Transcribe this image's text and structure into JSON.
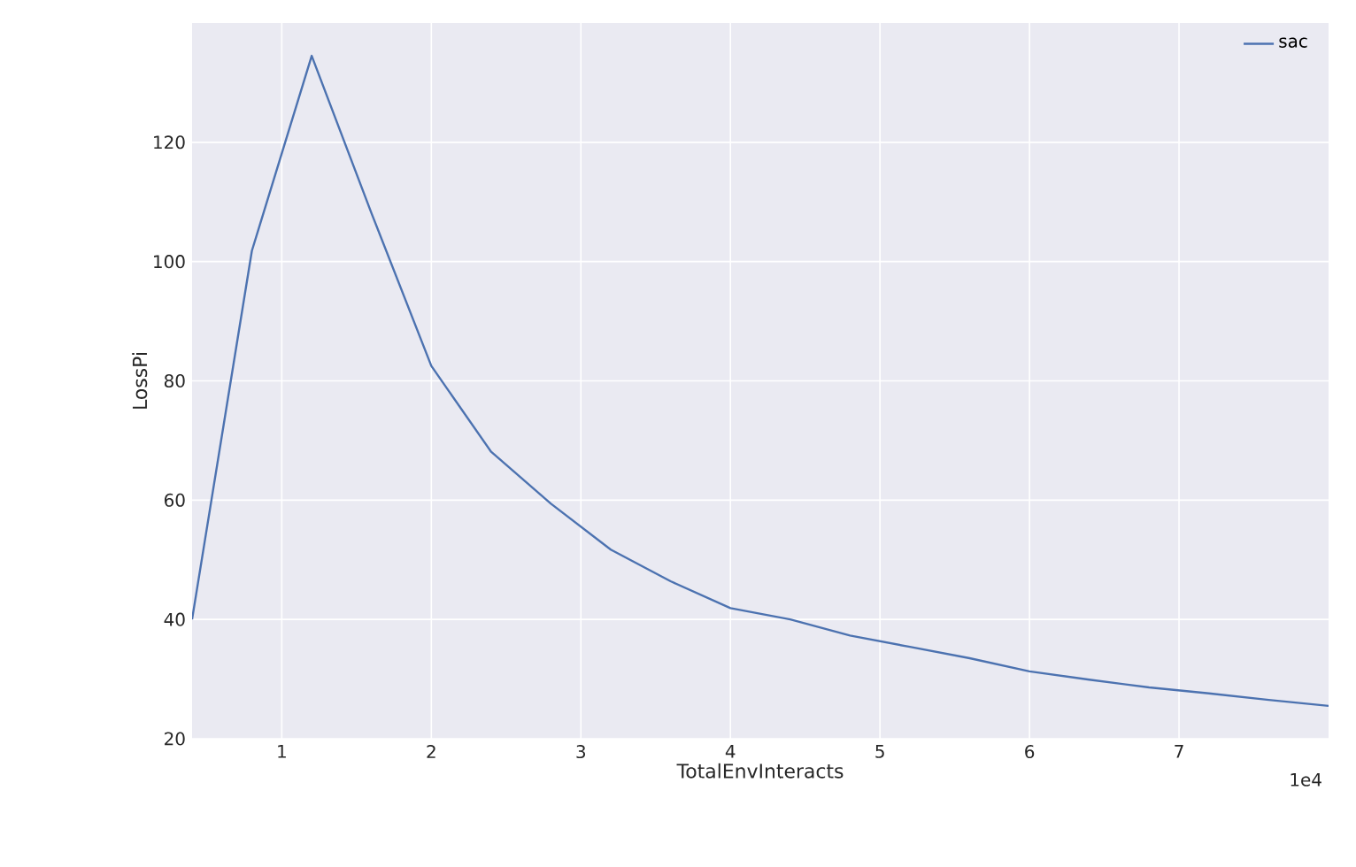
{
  "chart_data": {
    "type": "line",
    "xlabel": "TotalEnvInteracts",
    "ylabel": "LossPi",
    "x": [
      0.4,
      0.8,
      1.2,
      1.6,
      2.0,
      2.4,
      2.8,
      3.2,
      3.6,
      4.0,
      4.4,
      4.8,
      5.2,
      5.6,
      6.0,
      6.4,
      6.8,
      7.2,
      7.6,
      8.0
    ],
    "series": [
      {
        "name": "sac",
        "color": "#4c72b0",
        "values": [
          40.0,
          101.8,
          134.5,
          108.1,
          82.5,
          68.1,
          59.4,
          51.7,
          46.4,
          41.9,
          40.0,
          37.3,
          35.4,
          33.5,
          31.3,
          29.9,
          28.6,
          27.6,
          26.5,
          25.5
        ]
      }
    ],
    "xlim": [
      0.4,
      8.0
    ],
    "xticks": [
      1,
      2,
      3,
      4,
      5,
      6,
      7
    ],
    "ylim": [
      20,
      140
    ],
    "yticks": [
      20,
      40,
      60,
      80,
      100,
      120
    ],
    "annotations": [
      "1e4"
    ],
    "grid": true,
    "legend": "top right",
    "marker": "none",
    "line_style": "solid"
  }
}
